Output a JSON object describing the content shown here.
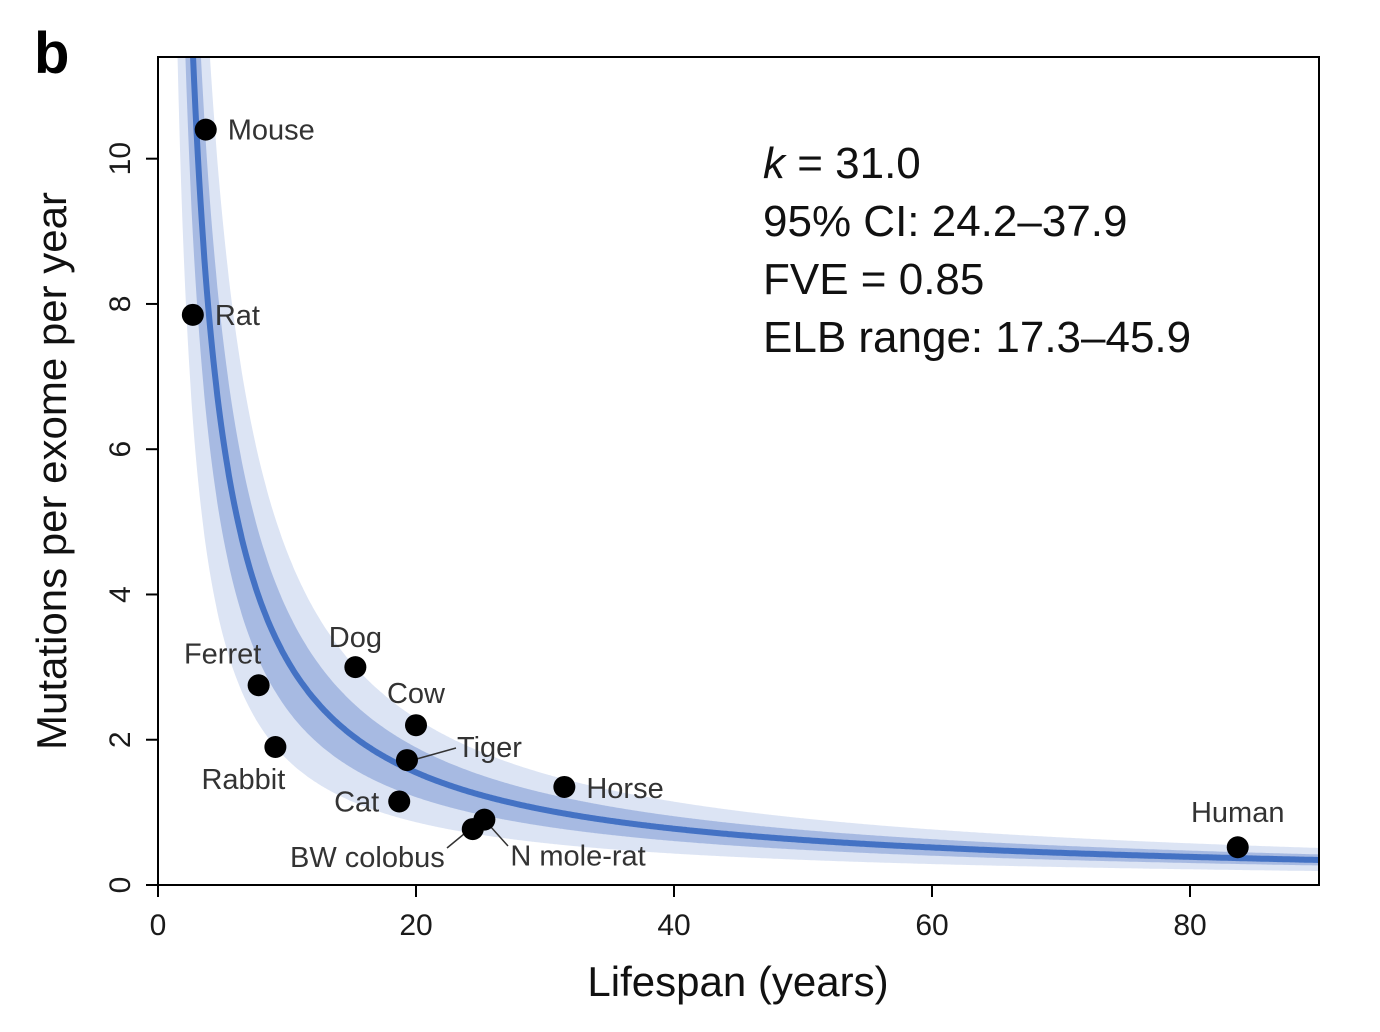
{
  "panel_label": "b",
  "colors": {
    "fit_line": "#4472C4",
    "inner_band": "#9DB3DE",
    "outer_band": "#DCE4F4",
    "points": "#000000",
    "frame": "#000000"
  },
  "chart_data": {
    "type": "scatter",
    "xlabel": "Lifespan (years)",
    "ylabel": "Mutations per exome per year",
    "xlim": [
      0,
      90
    ],
    "ylim": [
      0,
      11.4
    ],
    "xticks": [
      0,
      20,
      40,
      60,
      80
    ],
    "yticks": [
      0,
      2,
      4,
      6,
      8,
      10
    ],
    "grid": false,
    "points": [
      {
        "label": "Mouse",
        "x": 3.7,
        "y": 10.4
      },
      {
        "label": "Rat",
        "x": 2.7,
        "y": 7.85
      },
      {
        "label": "Ferret",
        "x": 7.8,
        "y": 2.75
      },
      {
        "label": "Rabbit",
        "x": 9.1,
        "y": 1.9
      },
      {
        "label": "Dog",
        "x": 15.3,
        "y": 3.0
      },
      {
        "label": "Cow",
        "x": 20.0,
        "y": 2.2
      },
      {
        "label": "Tiger",
        "x": 19.3,
        "y": 1.72
      },
      {
        "label": "Cat",
        "x": 18.7,
        "y": 1.15
      },
      {
        "label": "BW colobus",
        "x": 24.4,
        "y": 0.77
      },
      {
        "label": "N mole-rat",
        "x": 25.3,
        "y": 0.9
      },
      {
        "label": "Horse",
        "x": 31.5,
        "y": 1.35
      },
      {
        "label": "Human",
        "x": 83.7,
        "y": 0.52
      }
    ],
    "fit": {
      "model": "k / lifespan",
      "k": 31.0
    },
    "ci_band": {
      "k_low": 24.2,
      "k_high": 37.9
    },
    "elb_band": {
      "k_low": 17.3,
      "k_high": 45.9
    },
    "annotation": {
      "k_line_var": "k",
      "k_line_rest": " = 31.0",
      "ci_line": "95% CI: 24.2–37.9",
      "fve_line": "FVE = 0.85",
      "elb_line": "ELB range: 17.3–45.9"
    }
  }
}
